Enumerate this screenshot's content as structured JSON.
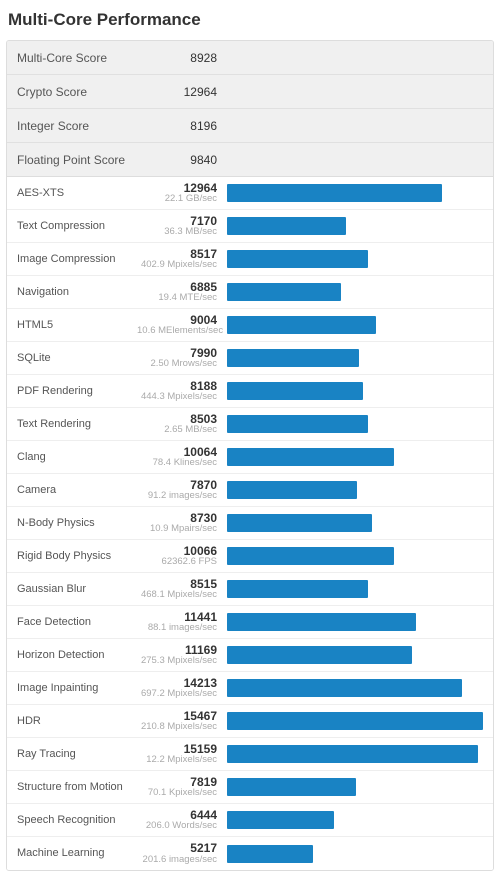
{
  "title": "Multi-Core Performance",
  "colors": {
    "bar": "#1983c4",
    "summary_bg": "#f0f0f0",
    "border": "#dddddd",
    "row_border": "#eeeeee",
    "text": "#333333",
    "subtext": "#aaaaaa"
  },
  "bar_max": 15700,
  "summary": [
    {
      "label": "Multi-Core Score",
      "value": "8928"
    },
    {
      "label": "Crypto Score",
      "value": "12964"
    },
    {
      "label": "Integer Score",
      "value": "8196"
    },
    {
      "label": "Floating Point Score",
      "value": "9840"
    }
  ],
  "benchmarks": [
    {
      "label": "AES-XTS",
      "score": 12964,
      "unit": "22.1 GB/sec"
    },
    {
      "label": "Text Compression",
      "score": 7170,
      "unit": "36.3 MB/sec"
    },
    {
      "label": "Image Compression",
      "score": 8517,
      "unit": "402.9 Mpixels/sec"
    },
    {
      "label": "Navigation",
      "score": 6885,
      "unit": "19.4 MTE/sec"
    },
    {
      "label": "HTML5",
      "score": 9004,
      "unit": "10.6 MElements/sec"
    },
    {
      "label": "SQLite",
      "score": 7990,
      "unit": "2.50 Mrows/sec"
    },
    {
      "label": "PDF Rendering",
      "score": 8188,
      "unit": "444.3 Mpixels/sec"
    },
    {
      "label": "Text Rendering",
      "score": 8503,
      "unit": "2.65 MB/sec"
    },
    {
      "label": "Clang",
      "score": 10064,
      "unit": "78.4 Klines/sec"
    },
    {
      "label": "Camera",
      "score": 7870,
      "unit": "91.2 images/sec"
    },
    {
      "label": "N-Body Physics",
      "score": 8730,
      "unit": "10.9 Mpairs/sec"
    },
    {
      "label": "Rigid Body Physics",
      "score": 10066,
      "unit": "62362.6 FPS"
    },
    {
      "label": "Gaussian Blur",
      "score": 8515,
      "unit": "468.1 Mpixels/sec"
    },
    {
      "label": "Face Detection",
      "score": 11441,
      "unit": "88.1 images/sec"
    },
    {
      "label": "Horizon Detection",
      "score": 11169,
      "unit": "275.3 Mpixels/sec"
    },
    {
      "label": "Image Inpainting",
      "score": 14213,
      "unit": "697.2 Mpixels/sec"
    },
    {
      "label": "HDR",
      "score": 15467,
      "unit": "210.8 Mpixels/sec"
    },
    {
      "label": "Ray Tracing",
      "score": 15159,
      "unit": "12.2 Mpixels/sec"
    },
    {
      "label": "Structure from Motion",
      "score": 7819,
      "unit": "70.1 Kpixels/sec"
    },
    {
      "label": "Speech Recognition",
      "score": 6444,
      "unit": "206.0 Words/sec"
    },
    {
      "label": "Machine Learning",
      "score": 5217,
      "unit": "201.6 images/sec"
    }
  ]
}
